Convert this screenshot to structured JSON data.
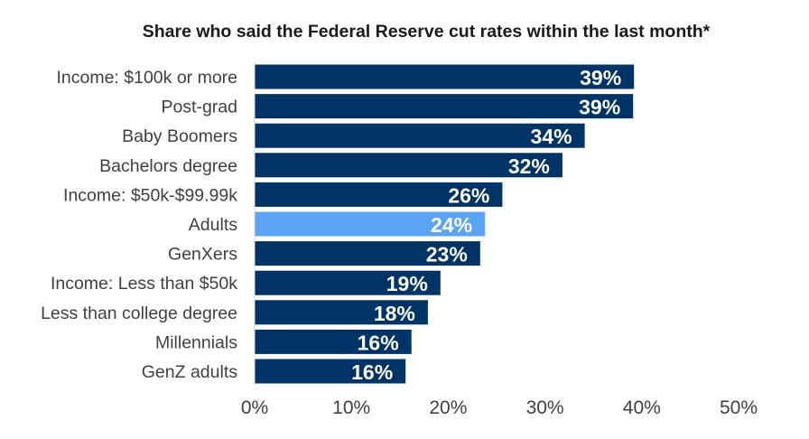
{
  "chart_data": {
    "type": "bar",
    "orientation": "horizontal",
    "title": "Share who said the Federal Reserve cut rates within the last month*",
    "categories": [
      "Income: $100k or more",
      "Post-grad",
      "Baby Boomers",
      "Bachelors degree",
      "Income: $50k-$99.99k",
      "Adults",
      "GenXers",
      "Income: Less than $50k",
      "Less than college degree",
      "Millennials",
      "GenZ adults"
    ],
    "values": [
      39.2,
      39.1,
      34.1,
      31.8,
      25.6,
      23.8,
      23.3,
      19.2,
      17.9,
      16.2,
      15.6
    ],
    "data_labels": [
      "39%",
      "39%",
      "34%",
      "32%",
      "26%",
      "24%",
      "23%",
      "19%",
      "18%",
      "16%",
      "16%"
    ],
    "highlight_category": "Adults",
    "colors": {
      "bar": "#003366",
      "highlight": "#5BA3F5",
      "data_label": "#FFFFFF"
    },
    "xlim": [
      0,
      50
    ],
    "xticks": [
      0,
      10,
      20,
      30,
      40,
      50
    ],
    "xtick_labels": [
      "0%",
      "10%",
      "20%",
      "30%",
      "40%",
      "50%"
    ],
    "grid": false,
    "legend": "none"
  }
}
